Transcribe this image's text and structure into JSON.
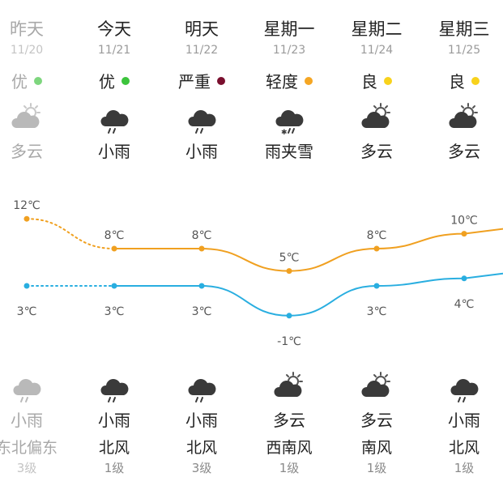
{
  "days": [
    {
      "day": "昨天",
      "date": "11/20",
      "aqi": "优",
      "aqi_color": "#7ed67e",
      "day_icon": "cloudy-sun-icon",
      "day_cond": "多云",
      "night_icon": "rain-cloud-icon",
      "night_cond": "小雨",
      "wind": "东北偏东",
      "level": "3级",
      "past": true
    },
    {
      "day": "今天",
      "date": "11/21",
      "aqi": "优",
      "aqi_color": "#3cc43c",
      "day_icon": "rain-cloud-icon",
      "day_cond": "小雨",
      "night_icon": "rain-cloud-icon",
      "night_cond": "小雨",
      "wind": "北风",
      "level": "1级",
      "past": false
    },
    {
      "day": "明天",
      "date": "11/22",
      "aqi": "严重",
      "aqi_color": "#7a0f2e",
      "day_icon": "rain-cloud-icon",
      "day_cond": "小雨",
      "night_icon": "rain-cloud-icon",
      "night_cond": "小雨",
      "wind": "北风",
      "level": "3级",
      "past": false
    },
    {
      "day": "星期一",
      "date": "11/23",
      "aqi": "轻度",
      "aqi_color": "#f5a623",
      "day_icon": "sleet-cloud-icon",
      "day_cond": "雨夹雪",
      "night_icon": "cloudy-sun-icon",
      "night_cond": "多云",
      "wind": "西南风",
      "level": "1级",
      "past": false
    },
    {
      "day": "星期二",
      "date": "11/24",
      "aqi": "良",
      "aqi_color": "#f8d21c",
      "day_icon": "cloudy-sun-icon",
      "day_cond": "多云",
      "night_icon": "cloudy-sun-icon",
      "night_cond": "多云",
      "wind": "南风",
      "level": "1级",
      "past": false
    },
    {
      "day": "星期三",
      "date": "11/25",
      "aqi": "良",
      "aqi_color": "#f8d21c",
      "day_icon": "cloudy-sun-icon",
      "day_cond": "多云",
      "night_icon": "rain-cloud-icon",
      "night_cond": "小雨",
      "wind": "北风",
      "level": "1级",
      "past": false
    }
  ],
  "temps": {
    "high": [
      12,
      8,
      8,
      5,
      8,
      10
    ],
    "low": [
      3,
      3,
      3,
      -1,
      3,
      4
    ],
    "high_labels": [
      "12℃",
      "8℃",
      "8℃",
      "5℃",
      "8℃",
      "10℃"
    ],
    "low_labels": [
      "3℃",
      "3℃",
      "3℃",
      "-1℃",
      "3℃",
      "4℃"
    ],
    "high_color": "#f0a020",
    "low_color": "#29aee0"
  }
}
